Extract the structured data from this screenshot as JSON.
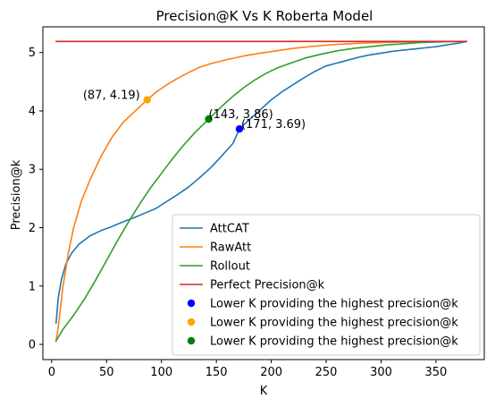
{
  "chart_data": {
    "type": "line",
    "title": "Precision@K Vs K Roberta Model",
    "xlabel": "K",
    "ylabel": "Precision@k",
    "xlim": [
      -8,
      394
    ],
    "ylim": [
      -0.26,
      5.44
    ],
    "xticks": [
      0,
      50,
      100,
      150,
      200,
      250,
      300,
      350
    ],
    "yticks": [
      0,
      1,
      2,
      3,
      4,
      5
    ],
    "grid": false,
    "legend_position": "lower right",
    "series": [
      {
        "name": "AttCAT",
        "color": "#1f77b4",
        "x": [
          4,
          6,
          9,
          13,
          18,
          25,
          35,
          45,
          55,
          65,
          75,
          85,
          95,
          105,
          115,
          125,
          135,
          145,
          155,
          165,
          171,
          180,
          190,
          200,
          210,
          220,
          230,
          240,
          250,
          260,
          270,
          280,
          290,
          300,
          310,
          320,
          330,
          340,
          350,
          360,
          370,
          378
        ],
        "y": [
          0.36,
          0.8,
          1.12,
          1.38,
          1.56,
          1.72,
          1.86,
          1.95,
          2.02,
          2.1,
          2.17,
          2.25,
          2.33,
          2.45,
          2.57,
          2.7,
          2.86,
          3.03,
          3.23,
          3.44,
          3.69,
          3.85,
          4.02,
          4.19,
          4.33,
          4.45,
          4.57,
          4.68,
          4.77,
          4.82,
          4.87,
          4.92,
          4.96,
          4.99,
          5.02,
          5.04,
          5.06,
          5.08,
          5.1,
          5.13,
          5.16,
          5.19
        ]
      },
      {
        "name": "RawAtt",
        "color": "#ff7f0e",
        "x": [
          4,
          6,
          10,
          15,
          20,
          27,
          35,
          45,
          55,
          65,
          75,
          87,
          95,
          105,
          115,
          125,
          135,
          145,
          160,
          175,
          190,
          205,
          220,
          240,
          260,
          280,
          300,
          320,
          340,
          360,
          378
        ],
        "y": [
          0.05,
          0.3,
          0.95,
          1.55,
          2.0,
          2.45,
          2.82,
          3.22,
          3.55,
          3.8,
          3.98,
          4.19,
          4.32,
          4.45,
          4.56,
          4.66,
          4.75,
          4.81,
          4.88,
          4.94,
          4.99,
          5.03,
          5.07,
          5.11,
          5.14,
          5.16,
          5.17,
          5.18,
          5.18,
          5.19,
          5.19
        ]
      },
      {
        "name": "Rollout",
        "color": "#2ca02c",
        "x": [
          4,
          10,
          20,
          30,
          40,
          50,
          60,
          70,
          80,
          90,
          100,
          110,
          120,
          130,
          143,
          155,
          165,
          175,
          185,
          195,
          205,
          215,
          230,
          245,
          260,
          275,
          290,
          305,
          320,
          335,
          350,
          365,
          378
        ],
        "y": [
          0.06,
          0.25,
          0.5,
          0.78,
          1.1,
          1.44,
          1.78,
          2.1,
          2.4,
          2.68,
          2.93,
          3.18,
          3.41,
          3.62,
          3.86,
          4.08,
          4.25,
          4.4,
          4.53,
          4.64,
          4.73,
          4.8,
          4.9,
          4.97,
          5.03,
          5.07,
          5.1,
          5.13,
          5.15,
          5.17,
          5.18,
          5.19,
          5.19
        ]
      },
      {
        "name": "Perfect Precision@k",
        "color": "#d62728",
        "x": [
          4,
          378
        ],
        "y": [
          5.19,
          5.19
        ]
      }
    ],
    "points": [
      {
        "name": "Lower K providing the highest precision@k",
        "color": "#0000ff",
        "x": 171,
        "y": 3.69,
        "label": "(171, 3.69)"
      },
      {
        "name": "Lower K providing the highest precision@k",
        "color": "#ffa500",
        "x": 87,
        "y": 4.19,
        "label": "(87, 4.19)"
      },
      {
        "name": "Lower K providing the highest precision@k",
        "color": "#008000",
        "x": 143,
        "y": 3.86,
        "label": "(143, 3.86)"
      }
    ]
  }
}
